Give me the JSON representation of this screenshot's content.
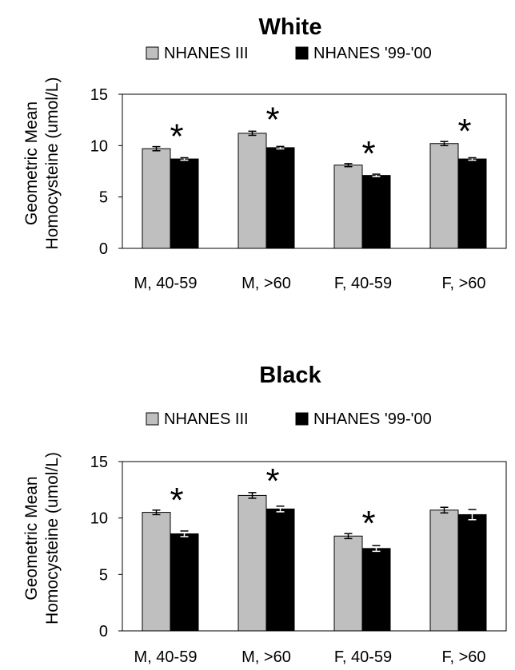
{
  "chart_data": [
    {
      "type": "bar",
      "title": "White",
      "ylabel": "Geometric Mean Homocysteine (umol/L)",
      "ylabel_lines": [
        "Geometric Mean",
        "Homocysteine (umol/L)"
      ],
      "xlabel": "",
      "ylim": [
        0,
        15
      ],
      "yticks": [
        "0",
        "5",
        "10",
        "15"
      ],
      "categories": [
        "M, 40-59",
        "M, >60",
        "F, 40-59",
        "F, >60"
      ],
      "series": [
        {
          "name": "NHANES III",
          "color": "#bfbfbf",
          "values": [
            9.7,
            11.2,
            8.1,
            10.2
          ],
          "errors": [
            0.2,
            0.2,
            0.15,
            0.2
          ]
        },
        {
          "name": "NHANES '99-'00",
          "color": "#000000",
          "values": [
            8.7,
            9.8,
            7.1,
            8.7
          ],
          "errors": [
            0.12,
            0.12,
            0.12,
            0.12
          ]
        }
      ],
      "annotations": [
        "*",
        "*",
        "*",
        "*"
      ],
      "legend": "top",
      "grid": false
    },
    {
      "type": "bar",
      "title": "Black",
      "ylabel": "Geometric Mean Homocysteine (umol/L)",
      "ylabel_lines": [
        "Geometric Mean",
        "Homocysteine (umol/L)"
      ],
      "xlabel": "",
      "ylim": [
        0,
        15
      ],
      "yticks": [
        "0",
        "5",
        "10",
        "15"
      ],
      "categories": [
        "M, 40-59",
        "M, >60",
        "F, 40-59",
        "F, >60"
      ],
      "series": [
        {
          "name": "NHANES III",
          "color": "#bfbfbf",
          "values": [
            10.5,
            12.0,
            8.4,
            10.7
          ],
          "errors": [
            0.2,
            0.25,
            0.22,
            0.25
          ]
        },
        {
          "name": "NHANES '99-'00",
          "color": "#000000",
          "values": [
            8.6,
            10.8,
            7.3,
            10.3
          ],
          "errors": [
            0.25,
            0.25,
            0.25,
            0.45
          ]
        }
      ],
      "annotations": [
        "*",
        "*",
        "*",
        ""
      ],
      "legend": "top",
      "grid": false
    }
  ]
}
